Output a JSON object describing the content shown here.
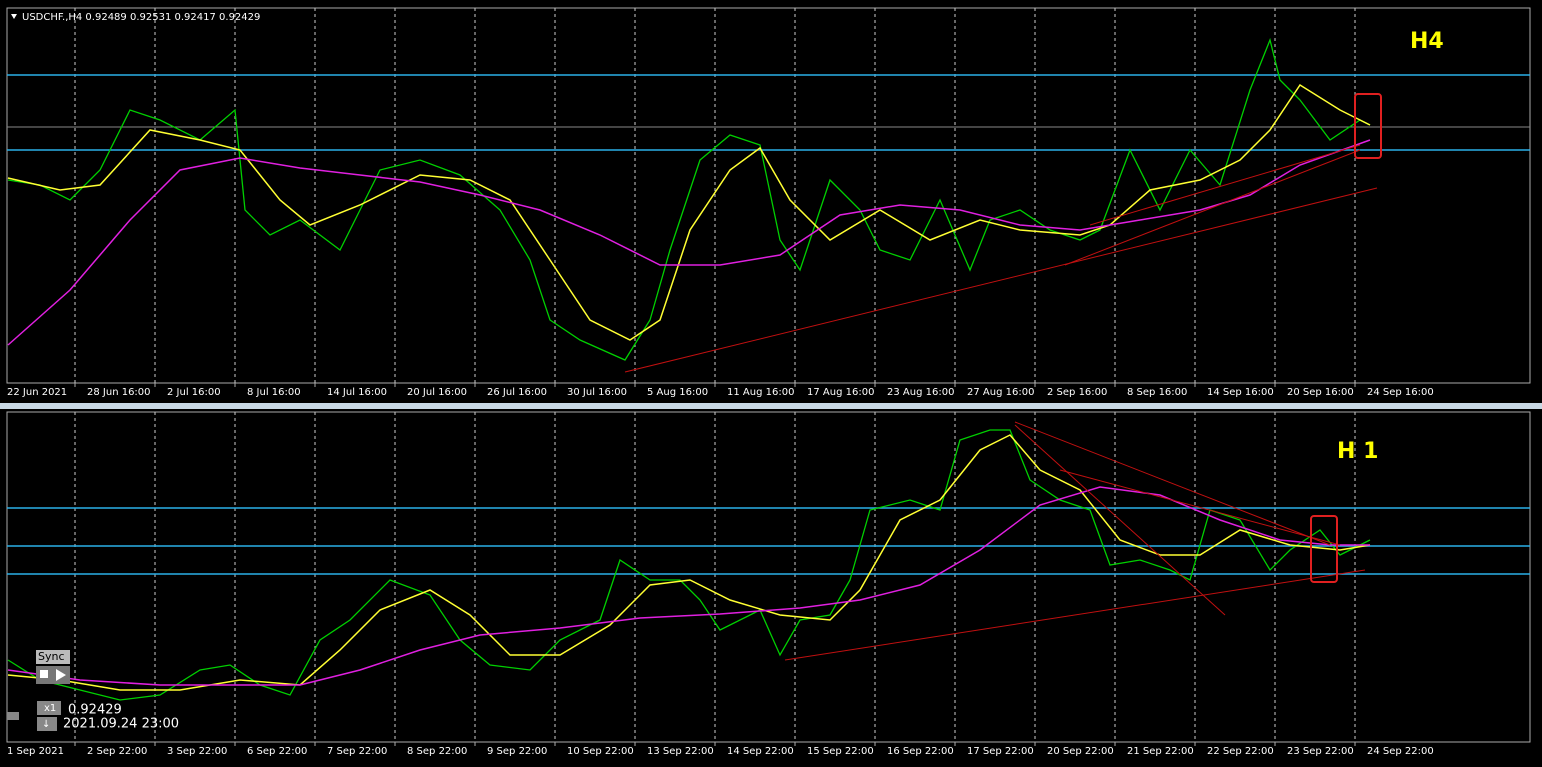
{
  "top_chart": {
    "header": "USDCHF.,H4  0.92489 0.92531 0.92417 0.92429",
    "label": "H4",
    "x_labels": [
      "22 Jun 2021",
      "28 Jun 16:00",
      "2 Jul 16:00",
      "8 Jul 16:00",
      "14 Jul 16:00",
      "20 Jul 16:00",
      "26 Jul 16:00",
      "30 Jul 16:00",
      "5 Aug 16:00",
      "11 Aug 16:00",
      "17 Aug 16:00",
      "23 Aug 16:00",
      "27 Aug 16:00",
      "2 Sep 16:00",
      "8 Sep 16:00",
      "14 Sep 16:00",
      "20 Sep 16:00",
      "24 Sep 16:00"
    ]
  },
  "bottom_chart": {
    "label": "H 1",
    "x_labels": [
      "1 Sep 2021",
      "2 Sep 22:00",
      "3 Sep 22:00",
      "6 Sep 22:00",
      "7 Sep 22:00",
      "8 Sep 22:00",
      "9 Sep 22:00",
      "10 Sep 22:00",
      "13 Sep 22:00",
      "14 Sep 22:00",
      "15 Sep 22:00",
      "16 Sep 22:00",
      "17 Sep 22:00",
      "20 Sep 22:00",
      "21 Sep 22:00",
      "22 Sep 22:00",
      "23 Sep 22:00",
      "24 Sep 22:00"
    ]
  },
  "widget": {
    "sync": "Sync",
    "multiplier": "x1",
    "price": "0.92429",
    "time": "2021.09.24 23:00"
  }
}
